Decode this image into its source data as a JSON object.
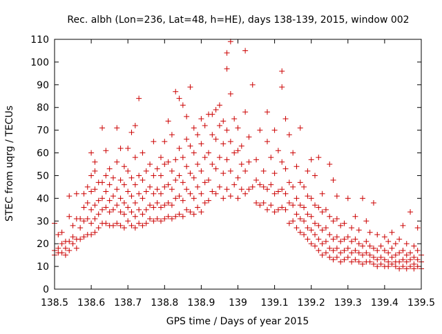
{
  "chart_data": {
    "type": "scatter",
    "title": "Rec. albh (Lon=236, Lat=48, h=HE), days 138-139, 2015, window 002",
    "xlabel": "GPS time / Days of year 2015",
    "ylabel": "STEC from uqrg / TECUs",
    "xlim": [
      138.5,
      139.5
    ],
    "ylim": [
      0,
      110
    ],
    "x_ticks": [
      "138.5",
      "138.6",
      "138.7",
      "138.8",
      "138.9",
      "139",
      "139.1",
      "139.2",
      "139.3",
      "139.4",
      "139.5"
    ],
    "y_ticks": [
      "0",
      "10",
      "20",
      "30",
      "40",
      "50",
      "60",
      "70",
      "80",
      "90",
      "100",
      "110"
    ],
    "marker": "+",
    "color": "#cc0000",
    "grid": false,
    "points": [
      [
        138.5,
        15
      ],
      [
        138.5,
        17
      ],
      [
        138.5,
        29
      ],
      [
        138.51,
        16
      ],
      [
        138.51,
        18
      ],
      [
        138.51,
        24
      ],
      [
        138.52,
        16
      ],
      [
        138.52,
        20
      ],
      [
        138.52,
        25
      ],
      [
        138.53,
        15
      ],
      [
        138.53,
        18
      ],
      [
        138.53,
        21
      ],
      [
        138.54,
        17
      ],
      [
        138.54,
        21
      ],
      [
        138.54,
        32
      ],
      [
        138.54,
        41
      ],
      [
        138.55,
        20
      ],
      [
        138.55,
        23
      ],
      [
        138.55,
        28
      ],
      [
        138.56,
        18
      ],
      [
        138.56,
        22
      ],
      [
        138.56,
        31
      ],
      [
        138.56,
        42
      ],
      [
        138.57,
        22
      ],
      [
        138.57,
        27
      ],
      [
        138.57,
        31
      ],
      [
        138.58,
        23
      ],
      [
        138.58,
        30
      ],
      [
        138.58,
        36
      ],
      [
        138.58,
        42
      ],
      [
        138.59,
        24
      ],
      [
        138.59,
        31
      ],
      [
        138.59,
        38
      ],
      [
        138.59,
        45
      ],
      [
        138.6,
        24
      ],
      [
        138.6,
        29
      ],
      [
        138.6,
        35
      ],
      [
        138.6,
        43
      ],
      [
        138.6,
        50
      ],
      [
        138.6,
        60
      ],
      [
        138.61,
        25
      ],
      [
        138.61,
        31
      ],
      [
        138.61,
        37
      ],
      [
        138.61,
        44
      ],
      [
        138.61,
        52
      ],
      [
        138.61,
        56
      ],
      [
        138.62,
        27
      ],
      [
        138.62,
        33
      ],
      [
        138.62,
        39
      ],
      [
        138.62,
        47
      ],
      [
        138.63,
        29
      ],
      [
        138.63,
        35
      ],
      [
        138.63,
        40
      ],
      [
        138.63,
        47
      ],
      [
        138.63,
        71
      ],
      [
        138.64,
        29
      ],
      [
        138.64,
        36
      ],
      [
        138.64,
        43
      ],
      [
        138.64,
        50
      ],
      [
        138.64,
        61
      ],
      [
        138.65,
        28
      ],
      [
        138.65,
        34
      ],
      [
        138.65,
        39
      ],
      [
        138.65,
        46
      ],
      [
        138.65,
        53
      ],
      [
        138.66,
        28
      ],
      [
        138.66,
        35
      ],
      [
        138.66,
        41
      ],
      [
        138.66,
        49
      ],
      [
        138.67,
        29
      ],
      [
        138.67,
        37
      ],
      [
        138.67,
        44
      ],
      [
        138.67,
        56
      ],
      [
        138.67,
        71
      ],
      [
        138.68,
        28
      ],
      [
        138.68,
        34
      ],
      [
        138.68,
        40
      ],
      [
        138.68,
        48
      ],
      [
        138.68,
        62
      ],
      [
        138.69,
        27
      ],
      [
        138.69,
        33
      ],
      [
        138.69,
        38
      ],
      [
        138.69,
        46
      ],
      [
        138.69,
        54
      ],
      [
        138.7,
        30
      ],
      [
        138.7,
        36
      ],
      [
        138.7,
        43
      ],
      [
        138.7,
        52
      ],
      [
        138.7,
        62
      ],
      [
        138.71,
        28
      ],
      [
        138.71,
        34
      ],
      [
        138.71,
        41
      ],
      [
        138.71,
        49
      ],
      [
        138.71,
        69
      ],
      [
        138.72,
        27
      ],
      [
        138.72,
        32
      ],
      [
        138.72,
        38
      ],
      [
        138.72,
        46
      ],
      [
        138.72,
        58
      ],
      [
        138.72,
        72
      ],
      [
        138.73,
        29
      ],
      [
        138.73,
        35
      ],
      [
        138.73,
        42
      ],
      [
        138.73,
        50
      ],
      [
        138.73,
        84
      ],
      [
        138.74,
        28
      ],
      [
        138.74,
        33
      ],
      [
        138.74,
        40
      ],
      [
        138.74,
        48
      ],
      [
        138.74,
        60
      ],
      [
        138.75,
        29
      ],
      [
        138.75,
        35
      ],
      [
        138.75,
        43
      ],
      [
        138.75,
        52
      ],
      [
        138.76,
        31
      ],
      [
        138.76,
        37
      ],
      [
        138.76,
        45
      ],
      [
        138.76,
        55
      ],
      [
        138.77,
        30
      ],
      [
        138.77,
        36
      ],
      [
        138.77,
        42
      ],
      [
        138.77,
        50
      ],
      [
        138.77,
        65
      ],
      [
        138.78,
        31
      ],
      [
        138.78,
        38
      ],
      [
        138.78,
        44
      ],
      [
        138.78,
        53
      ],
      [
        138.79,
        30
      ],
      [
        138.79,
        36
      ],
      [
        138.79,
        42
      ],
      [
        138.79,
        50
      ],
      [
        138.79,
        58
      ],
      [
        138.8,
        31
      ],
      [
        138.8,
        37
      ],
      [
        138.8,
        45
      ],
      [
        138.8,
        55
      ],
      [
        138.8,
        65
      ],
      [
        138.81,
        32
      ],
      [
        138.81,
        38
      ],
      [
        138.81,
        46
      ],
      [
        138.81,
        56
      ],
      [
        138.81,
        74
      ],
      [
        138.82,
        31
      ],
      [
        138.82,
        37
      ],
      [
        138.82,
        44
      ],
      [
        138.82,
        52
      ],
      [
        138.82,
        68
      ],
      [
        138.83,
        32
      ],
      [
        138.83,
        40
      ],
      [
        138.83,
        48
      ],
      [
        138.83,
        57
      ],
      [
        138.83,
        87
      ],
      [
        138.84,
        33
      ],
      [
        138.84,
        41
      ],
      [
        138.84,
        50
      ],
      [
        138.84,
        62
      ],
      [
        138.84,
        84
      ],
      [
        138.85,
        32
      ],
      [
        138.85,
        39
      ],
      [
        138.85,
        47
      ],
      [
        138.85,
        58
      ],
      [
        138.85,
        81
      ],
      [
        138.86,
        35
      ],
      [
        138.86,
        44
      ],
      [
        138.86,
        54
      ],
      [
        138.86,
        66
      ],
      [
        138.86,
        76
      ],
      [
        138.87,
        34
      ],
      [
        138.87,
        42
      ],
      [
        138.87,
        51
      ],
      [
        138.87,
        63
      ],
      [
        138.87,
        89
      ],
      [
        138.88,
        33
      ],
      [
        138.88,
        40
      ],
      [
        138.88,
        49
      ],
      [
        138.88,
        60
      ],
      [
        138.88,
        71
      ],
      [
        138.89,
        36
      ],
      [
        138.89,
        45
      ],
      [
        138.89,
        55
      ],
      [
        138.89,
        68
      ],
      [
        138.9,
        34
      ],
      [
        138.9,
        42
      ],
      [
        138.9,
        52
      ],
      [
        138.9,
        64
      ],
      [
        138.9,
        75
      ],
      [
        138.91,
        38
      ],
      [
        138.91,
        47
      ],
      [
        138.91,
        58
      ],
      [
        138.91,
        72
      ],
      [
        138.92,
        39
      ],
      [
        138.92,
        48
      ],
      [
        138.92,
        60
      ],
      [
        138.92,
        77
      ],
      [
        138.93,
        43
      ],
      [
        138.93,
        55
      ],
      [
        138.93,
        68
      ],
      [
        138.93,
        77
      ],
      [
        138.94,
        42
      ],
      [
        138.94,
        53
      ],
      [
        138.94,
        66
      ],
      [
        138.94,
        79
      ],
      [
        138.95,
        45
      ],
      [
        138.95,
        58
      ],
      [
        138.95,
        72
      ],
      [
        138.95,
        81
      ],
      [
        138.96,
        40
      ],
      [
        138.96,
        51
      ],
      [
        138.96,
        64
      ],
      [
        138.96,
        74
      ],
      [
        138.97,
        44
      ],
      [
        138.97,
        57
      ],
      [
        138.97,
        70
      ],
      [
        138.97,
        97
      ],
      [
        138.97,
        104
      ],
      [
        138.98,
        41
      ],
      [
        138.98,
        52
      ],
      [
        138.98,
        65
      ],
      [
        138.98,
        86
      ],
      [
        138.98,
        109
      ],
      [
        138.99,
        46
      ],
      [
        138.99,
        60
      ],
      [
        138.99,
        75
      ],
      [
        139.0,
        40
      ],
      [
        139.0,
        49
      ],
      [
        139.0,
        61
      ],
      [
        139.0,
        71
      ],
      [
        139.01,
        44
      ],
      [
        139.01,
        55
      ],
      [
        139.01,
        63
      ],
      [
        139.02,
        42
      ],
      [
        139.02,
        52
      ],
      [
        139.02,
        78
      ],
      [
        139.02,
        105
      ],
      [
        139.03,
        44
      ],
      [
        139.03,
        56
      ],
      [
        139.03,
        67
      ],
      [
        139.04,
        45
      ],
      [
        139.04,
        90
      ],
      [
        139.05,
        38
      ],
      [
        139.05,
        48
      ],
      [
        139.05,
        57
      ],
      [
        139.06,
        37
      ],
      [
        139.06,
        46
      ],
      [
        139.06,
        70
      ],
      [
        139.07,
        38
      ],
      [
        139.07,
        45
      ],
      [
        139.07,
        52
      ],
      [
        139.08,
        35
      ],
      [
        139.08,
        44
      ],
      [
        139.08,
        65
      ],
      [
        139.08,
        78
      ],
      [
        139.09,
        37
      ],
      [
        139.09,
        46
      ],
      [
        139.09,
        58
      ],
      [
        139.1,
        34
      ],
      [
        139.1,
        42
      ],
      [
        139.1,
        51
      ],
      [
        139.1,
        70
      ],
      [
        139.11,
        35
      ],
      [
        139.11,
        43
      ],
      [
        139.11,
        61
      ],
      [
        139.12,
        36
      ],
      [
        139.12,
        44
      ],
      [
        139.12,
        56
      ],
      [
        139.12,
        89
      ],
      [
        139.12,
        96
      ],
      [
        139.13,
        35
      ],
      [
        139.13,
        42
      ],
      [
        139.13,
        53
      ],
      [
        139.13,
        75
      ],
      [
        139.14,
        29
      ],
      [
        139.14,
        38
      ],
      [
        139.14,
        47
      ],
      [
        139.14,
        68
      ],
      [
        139.15,
        30
      ],
      [
        139.15,
        37
      ],
      [
        139.15,
        45
      ],
      [
        139.15,
        60
      ],
      [
        139.16,
        27
      ],
      [
        139.16,
        33
      ],
      [
        139.16,
        40
      ],
      [
        139.16,
        54
      ],
      [
        139.17,
        25
      ],
      [
        139.17,
        31
      ],
      [
        139.17,
        37
      ],
      [
        139.17,
        47
      ],
      [
        139.17,
        71
      ],
      [
        139.18,
        24
      ],
      [
        139.18,
        30
      ],
      [
        139.18,
        36
      ],
      [
        139.18,
        45
      ],
      [
        139.19,
        22
      ],
      [
        139.19,
        27
      ],
      [
        139.19,
        33
      ],
      [
        139.19,
        41
      ],
      [
        139.19,
        52
      ],
      [
        139.2,
        20
      ],
      [
        139.2,
        26
      ],
      [
        139.2,
        32
      ],
      [
        139.2,
        40
      ],
      [
        139.2,
        57
      ],
      [
        139.21,
        19
      ],
      [
        139.21,
        24
      ],
      [
        139.21,
        29
      ],
      [
        139.21,
        37
      ],
      [
        139.21,
        50
      ],
      [
        139.22,
        17
      ],
      [
        139.22,
        22
      ],
      [
        139.22,
        28
      ],
      [
        139.22,
        36
      ],
      [
        139.22,
        58
      ],
      [
        139.23,
        15
      ],
      [
        139.23,
        20
      ],
      [
        139.23,
        26
      ],
      [
        139.23,
        34
      ],
      [
        139.23,
        42
      ],
      [
        139.24,
        16
      ],
      [
        139.24,
        21
      ],
      [
        139.24,
        27
      ],
      [
        139.24,
        35
      ],
      [
        139.25,
        14
      ],
      [
        139.25,
        18
      ],
      [
        139.25,
        24
      ],
      [
        139.25,
        32
      ],
      [
        139.25,
        55
      ],
      [
        139.26,
        13
      ],
      [
        139.26,
        17
      ],
      [
        139.26,
        22
      ],
      [
        139.26,
        30
      ],
      [
        139.26,
        48
      ],
      [
        139.27,
        14
      ],
      [
        139.27,
        18
      ],
      [
        139.27,
        23
      ],
      [
        139.27,
        31
      ],
      [
        139.27,
        41
      ],
      [
        139.28,
        12
      ],
      [
        139.28,
        16
      ],
      [
        139.28,
        21
      ],
      [
        139.28,
        28
      ],
      [
        139.29,
        13
      ],
      [
        139.29,
        17
      ],
      [
        139.29,
        22
      ],
      [
        139.29,
        29
      ],
      [
        139.3,
        14
      ],
      [
        139.3,
        18
      ],
      [
        139.3,
        23
      ],
      [
        139.3,
        40
      ],
      [
        139.31,
        12
      ],
      [
        139.31,
        16
      ],
      [
        139.31,
        21
      ],
      [
        139.31,
        27
      ],
      [
        139.32,
        13
      ],
      [
        139.32,
        17
      ],
      [
        139.32,
        22
      ],
      [
        139.32,
        32
      ],
      [
        139.33,
        12
      ],
      [
        139.33,
        16
      ],
      [
        139.33,
        20
      ],
      [
        139.33,
        26
      ],
      [
        139.34,
        11
      ],
      [
        139.34,
        15
      ],
      [
        139.34,
        19
      ],
      [
        139.34,
        40
      ],
      [
        139.35,
        12
      ],
      [
        139.35,
        16
      ],
      [
        139.35,
        21
      ],
      [
        139.35,
        30
      ],
      [
        139.36,
        12
      ],
      [
        139.36,
        15
      ],
      [
        139.36,
        19
      ],
      [
        139.36,
        25
      ],
      [
        139.37,
        11
      ],
      [
        139.37,
        14
      ],
      [
        139.37,
        18
      ],
      [
        139.37,
        38
      ],
      [
        139.38,
        10
      ],
      [
        139.38,
        13
      ],
      [
        139.38,
        17
      ],
      [
        139.38,
        24
      ],
      [
        139.39,
        11
      ],
      [
        139.39,
        14
      ],
      [
        139.39,
        19
      ],
      [
        139.4,
        10
      ],
      [
        139.4,
        13
      ],
      [
        139.4,
        17
      ],
      [
        139.4,
        23
      ],
      [
        139.41,
        10
      ],
      [
        139.41,
        12
      ],
      [
        139.41,
        16
      ],
      [
        139.41,
        21
      ],
      [
        139.42,
        11
      ],
      [
        139.42,
        14
      ],
      [
        139.42,
        18
      ],
      [
        139.42,
        25
      ],
      [
        139.43,
        10
      ],
      [
        139.43,
        12
      ],
      [
        139.43,
        15
      ],
      [
        139.43,
        20
      ],
      [
        139.44,
        9
      ],
      [
        139.44,
        12
      ],
      [
        139.44,
        16
      ],
      [
        139.44,
        22
      ],
      [
        139.45,
        10
      ],
      [
        139.45,
        13
      ],
      [
        139.45,
        17
      ],
      [
        139.45,
        28
      ],
      [
        139.46,
        9
      ],
      [
        139.46,
        12
      ],
      [
        139.46,
        15
      ],
      [
        139.46,
        20
      ],
      [
        139.47,
        10
      ],
      [
        139.47,
        13
      ],
      [
        139.47,
        16
      ],
      [
        139.47,
        34
      ],
      [
        139.48,
        9
      ],
      [
        139.48,
        11
      ],
      [
        139.48,
        14
      ],
      [
        139.48,
        19
      ],
      [
        139.49,
        10
      ],
      [
        139.49,
        13
      ],
      [
        139.49,
        17
      ],
      [
        139.49,
        27
      ],
      [
        139.5,
        9
      ],
      [
        139.5,
        12
      ],
      [
        139.5,
        15
      ]
    ]
  }
}
